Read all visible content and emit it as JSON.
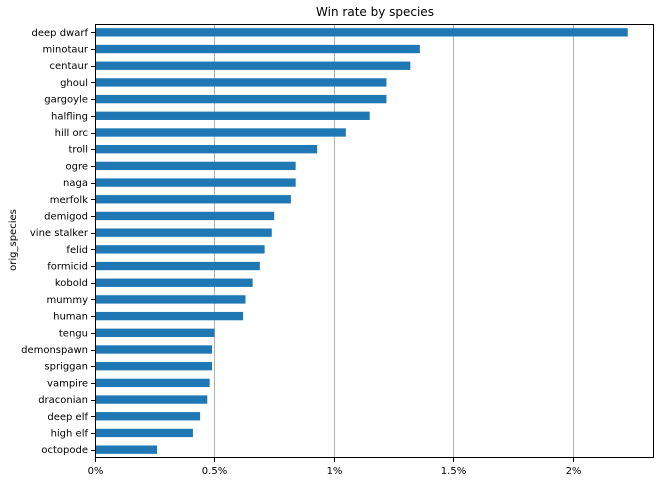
{
  "chart_data": {
    "type": "bar",
    "orientation": "horizontal",
    "title": "Win rate by species",
    "xlabel": "",
    "ylabel": "orig_species",
    "xlim": [
      0,
      2.34
    ],
    "x_ticks": [
      {
        "value": 0,
        "label": "0%"
      },
      {
        "value": 0.5,
        "label": "0.5%"
      },
      {
        "value": 1,
        "label": "1%"
      },
      {
        "value": 1.5,
        "label": "1.5%"
      },
      {
        "value": 2,
        "label": "2%"
      }
    ],
    "grid": "vertical",
    "bar_color": "#1f77b4",
    "grid_color": "#b0b0b0",
    "categories": [
      "deep dwarf",
      "minotaur",
      "centaur",
      "ghoul",
      "gargoyle",
      "halfling",
      "hill orc",
      "troll",
      "ogre",
      "naga",
      "merfolk",
      "demigod",
      "vine stalker",
      "felid",
      "formicid",
      "kobold",
      "mummy",
      "human",
      "tengu",
      "demonspawn",
      "spriggan",
      "vampire",
      "draconian",
      "deep elf",
      "high elf",
      "octopode"
    ],
    "values": [
      2.23,
      1.36,
      1.32,
      1.22,
      1.22,
      1.15,
      1.05,
      0.93,
      0.84,
      0.84,
      0.82,
      0.75,
      0.74,
      0.71,
      0.69,
      0.66,
      0.63,
      0.62,
      0.5,
      0.49,
      0.49,
      0.48,
      0.47,
      0.44,
      0.41,
      0.26
    ]
  }
}
